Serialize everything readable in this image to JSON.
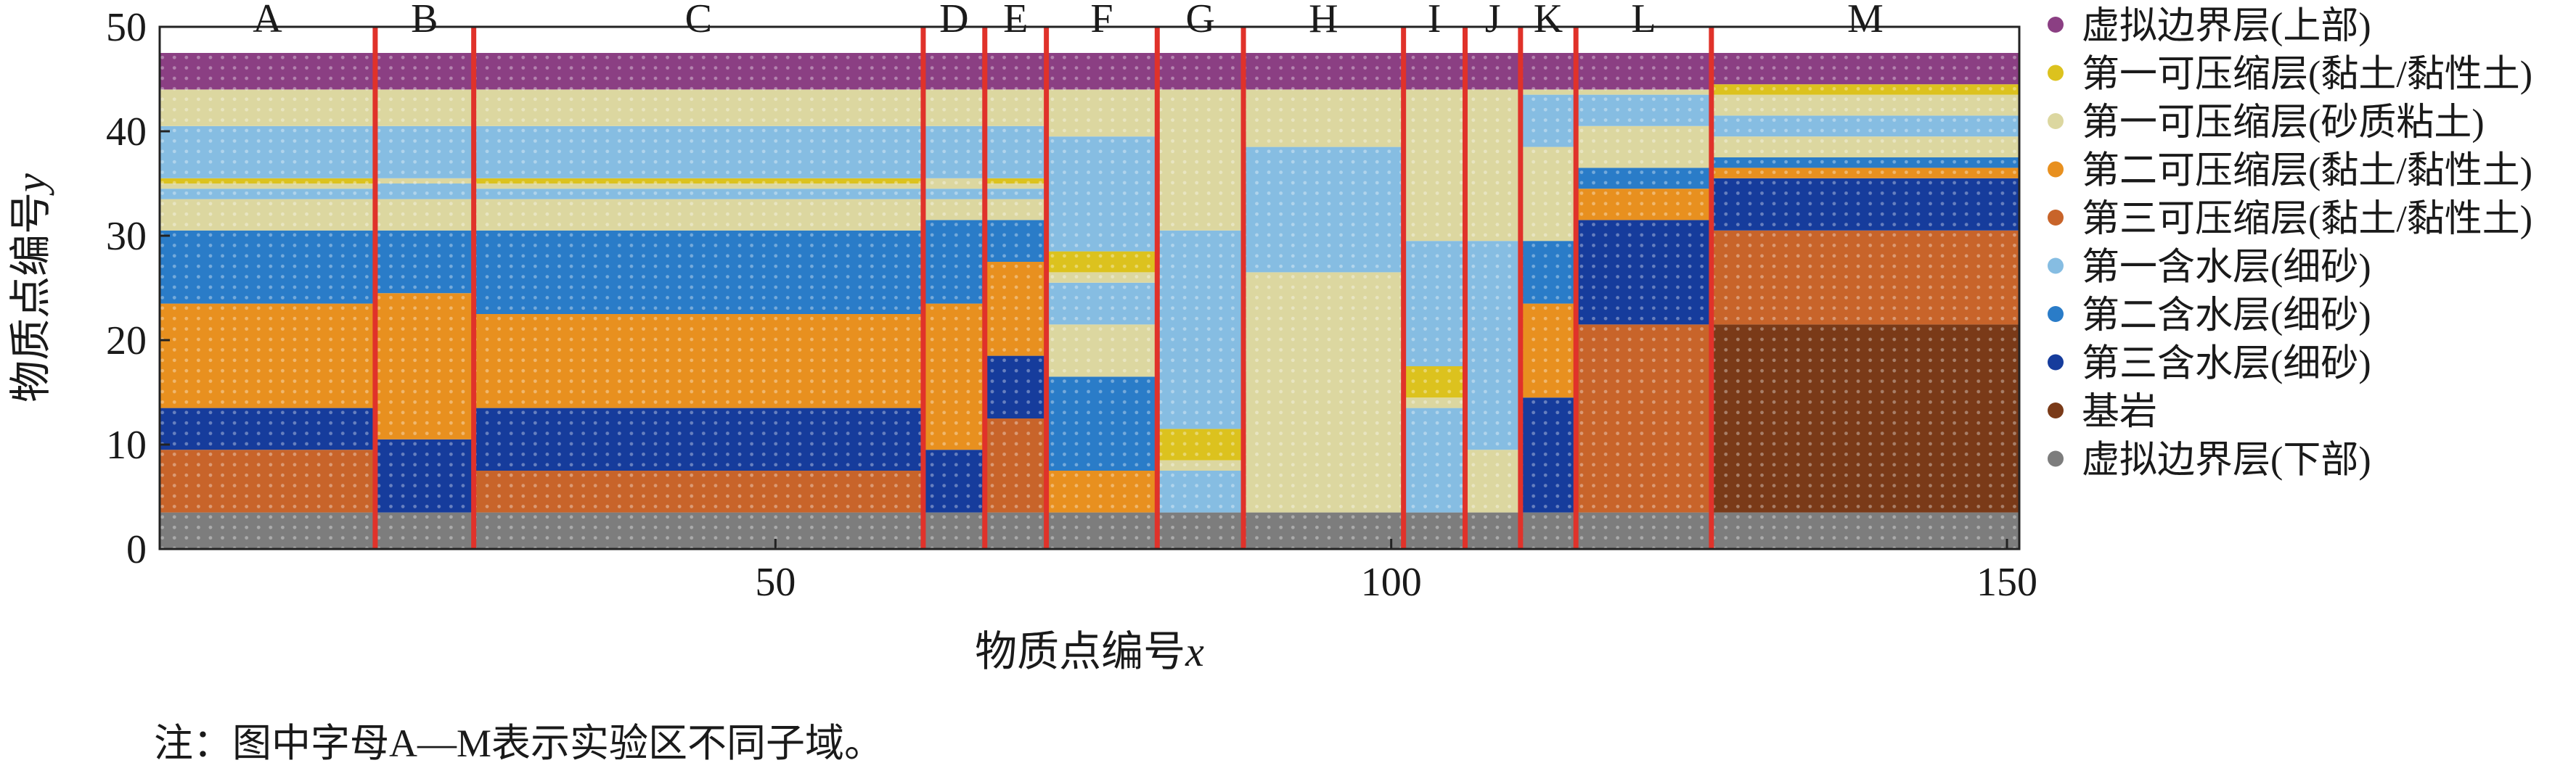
{
  "chart_data": {
    "type": "heatmap",
    "xlabel": "物质点编号",
    "xlabel_var": "x",
    "ylabel": "物质点编号",
    "ylabel_var": "y",
    "xlim": [
      0,
      151
    ],
    "ylim": [
      0,
      50
    ],
    "xticks": [
      50,
      100,
      150
    ],
    "yticks": [
      0,
      10,
      20,
      30,
      40,
      50
    ],
    "layers": [
      {
        "id": "virt_top",
        "name": "虚拟边界层(上部)",
        "color": "#8b3f83"
      },
      {
        "id": "comp1_clay",
        "name": "第一可压缩层(黏土/黏性土)",
        "color": "#dcc21e"
      },
      {
        "id": "comp1_silt",
        "name": "第一可压缩层(砂质粘土)",
        "color": "#dcd7a0"
      },
      {
        "id": "comp2_clay",
        "name": "第二可压缩层(黏土/黏性土)",
        "color": "#e8901f"
      },
      {
        "id": "comp3_clay",
        "name": "第三可压缩层(黏土/黏性土)",
        "color": "#c8642a"
      },
      {
        "id": "aq1",
        "name": "第一含水层(细砂)",
        "color": "#86bde2"
      },
      {
        "id": "aq2",
        "name": "第二含水层(细砂)",
        "color": "#2a7cc8"
      },
      {
        "id": "aq3",
        "name": "第三含水层(细砂)",
        "color": "#163c9c"
      },
      {
        "id": "bedrock",
        "name": "基岩",
        "color": "#7a3a18"
      },
      {
        "id": "virt_bottom",
        "name": "虚拟边界层(下部)",
        "color": "#7d7d7d"
      }
    ],
    "zones": [
      {
        "label": "A",
        "x_range": [
          0,
          17.5
        ],
        "strata": [
          {
            "layer": "virt_bottom",
            "y": [
              0,
              3.5
            ]
          },
          {
            "layer": "comp3_clay",
            "y": [
              3.5,
              9.5
            ]
          },
          {
            "layer": "aq3",
            "y": [
              9.5,
              13.5
            ]
          },
          {
            "layer": "comp2_clay",
            "y": [
              13.5,
              23.5
            ]
          },
          {
            "layer": "aq2",
            "y": [
              23.5,
              30.5
            ]
          },
          {
            "layer": "comp1_silt",
            "y": [
              30.5,
              33.5
            ]
          },
          {
            "layer": "aq1",
            "y": [
              33.5,
              34.5
            ]
          },
          {
            "layer": "comp1_silt",
            "y": [
              34.5,
              35
            ]
          },
          {
            "layer": "comp1_clay",
            "y": [
              35,
              35.5
            ]
          },
          {
            "layer": "aq1",
            "y": [
              35.5,
              40.5
            ]
          },
          {
            "layer": "comp1_silt",
            "y": [
              40.5,
              44
            ]
          },
          {
            "layer": "virt_top",
            "y": [
              44,
              47.5
            ]
          }
        ]
      },
      {
        "label": "B",
        "x_range": [
          17.5,
          25.5
        ],
        "strata": [
          {
            "layer": "virt_bottom",
            "y": [
              0,
              3.5
            ]
          },
          {
            "layer": "aq3",
            "y": [
              3.5,
              10.5
            ]
          },
          {
            "layer": "comp2_clay",
            "y": [
              10.5,
              24.5
            ]
          },
          {
            "layer": "aq2",
            "y": [
              24.5,
              30.5
            ]
          },
          {
            "layer": "comp1_silt",
            "y": [
              30.5,
              33.5
            ]
          },
          {
            "layer": "aq1",
            "y": [
              33.5,
              35
            ]
          },
          {
            "layer": "comp1_silt",
            "y": [
              35,
              35.5
            ]
          },
          {
            "layer": "aq1",
            "y": [
              35.5,
              40.5
            ]
          },
          {
            "layer": "comp1_silt",
            "y": [
              40.5,
              44
            ]
          },
          {
            "layer": "virt_top",
            "y": [
              44,
              47.5
            ]
          }
        ]
      },
      {
        "label": "C",
        "x_range": [
          25.5,
          62
        ],
        "strata": [
          {
            "layer": "virt_bottom",
            "y": [
              0,
              3.5
            ]
          },
          {
            "layer": "comp3_clay",
            "y": [
              3.5,
              7.5
            ]
          },
          {
            "layer": "aq3",
            "y": [
              7.5,
              13.5
            ]
          },
          {
            "layer": "comp2_clay",
            "y": [
              13.5,
              22.5
            ]
          },
          {
            "layer": "aq2",
            "y": [
              22.5,
              30.5
            ]
          },
          {
            "layer": "comp1_silt",
            "y": [
              30.5,
              33.5
            ]
          },
          {
            "layer": "aq1",
            "y": [
              33.5,
              34.5
            ]
          },
          {
            "layer": "comp1_silt",
            "y": [
              34.5,
              35
            ]
          },
          {
            "layer": "comp1_clay",
            "y": [
              35,
              35.5
            ]
          },
          {
            "layer": "aq1",
            "y": [
              35.5,
              40.5
            ]
          },
          {
            "layer": "comp1_silt",
            "y": [
              40.5,
              44
            ]
          },
          {
            "layer": "virt_top",
            "y": [
              44,
              47.5
            ]
          }
        ]
      },
      {
        "label": "D",
        "x_range": [
          62,
          67
        ],
        "strata": [
          {
            "layer": "virt_bottom",
            "y": [
              0,
              3.5
            ]
          },
          {
            "layer": "aq3",
            "y": [
              3.5,
              9.5
            ]
          },
          {
            "layer": "comp2_clay",
            "y": [
              9.5,
              23.5
            ]
          },
          {
            "layer": "aq2",
            "y": [
              23.5,
              31.5
            ]
          },
          {
            "layer": "comp1_silt",
            "y": [
              31.5,
              33.5
            ]
          },
          {
            "layer": "aq1",
            "y": [
              33.5,
              34.5
            ]
          },
          {
            "layer": "comp1_silt",
            "y": [
              34.5,
              35.5
            ]
          },
          {
            "layer": "aq1",
            "y": [
              35.5,
              40.5
            ]
          },
          {
            "layer": "comp1_silt",
            "y": [
              40.5,
              44
            ]
          },
          {
            "layer": "virt_top",
            "y": [
              44,
              47.5
            ]
          }
        ]
      },
      {
        "label": "E",
        "x_range": [
          67,
          72
        ],
        "strata": [
          {
            "layer": "virt_bottom",
            "y": [
              0,
              3.5
            ]
          },
          {
            "layer": "comp3_clay",
            "y": [
              3.5,
              12.5
            ]
          },
          {
            "layer": "aq3",
            "y": [
              12.5,
              18.5
            ]
          },
          {
            "layer": "comp2_clay",
            "y": [
              18.5,
              27.5
            ]
          },
          {
            "layer": "aq2",
            "y": [
              27.5,
              31.5
            ]
          },
          {
            "layer": "comp1_silt",
            "y": [
              31.5,
              33.5
            ]
          },
          {
            "layer": "aq1",
            "y": [
              33.5,
              34.5
            ]
          },
          {
            "layer": "comp1_silt",
            "y": [
              34.5,
              35
            ]
          },
          {
            "layer": "comp1_clay",
            "y": [
              35,
              35.5
            ]
          },
          {
            "layer": "aq1",
            "y": [
              35.5,
              40.5
            ]
          },
          {
            "layer": "comp1_silt",
            "y": [
              40.5,
              44
            ]
          },
          {
            "layer": "virt_top",
            "y": [
              44,
              47.5
            ]
          }
        ]
      },
      {
        "label": "F",
        "x_range": [
          72,
          81
        ],
        "strata": [
          {
            "layer": "virt_bottom",
            "y": [
              0,
              3.5
            ]
          },
          {
            "layer": "comp2_clay",
            "y": [
              3.5,
              7.5
            ]
          },
          {
            "layer": "aq2",
            "y": [
              7.5,
              16.5
            ]
          },
          {
            "layer": "comp1_silt",
            "y": [
              16.5,
              21.5
            ]
          },
          {
            "layer": "aq1",
            "y": [
              21.5,
              25.5
            ]
          },
          {
            "layer": "comp1_silt",
            "y": [
              25.5,
              26.5
            ]
          },
          {
            "layer": "comp1_clay",
            "y": [
              26.5,
              28.5
            ]
          },
          {
            "layer": "aq1",
            "y": [
              28.5,
              39.5
            ]
          },
          {
            "layer": "comp1_silt",
            "y": [
              39.5,
              44
            ]
          },
          {
            "layer": "virt_top",
            "y": [
              44,
              47.5
            ]
          }
        ]
      },
      {
        "label": "G",
        "x_range": [
          81,
          88
        ],
        "strata": [
          {
            "layer": "virt_bottom",
            "y": [
              0,
              3.5
            ]
          },
          {
            "layer": "aq1",
            "y": [
              3.5,
              7.5
            ]
          },
          {
            "layer": "comp1_silt",
            "y": [
              7.5,
              8.5
            ]
          },
          {
            "layer": "comp1_clay",
            "y": [
              8.5,
              11.5
            ]
          },
          {
            "layer": "aq1",
            "y": [
              11.5,
              30.5
            ]
          },
          {
            "layer": "comp1_silt",
            "y": [
              30.5,
              44
            ]
          },
          {
            "layer": "virt_top",
            "y": [
              44,
              47.5
            ]
          }
        ]
      },
      {
        "label": "H",
        "x_range": [
          88,
          101
        ],
        "strata": [
          {
            "layer": "virt_bottom",
            "y": [
              0,
              3.5
            ]
          },
          {
            "layer": "comp1_silt",
            "y": [
              3.5,
              26.5
            ]
          },
          {
            "layer": "aq1",
            "y": [
              26.5,
              38.5
            ]
          },
          {
            "layer": "comp1_silt",
            "y": [
              38.5,
              44
            ]
          },
          {
            "layer": "virt_top",
            "y": [
              44,
              47.5
            ]
          }
        ]
      },
      {
        "label": "I",
        "x_range": [
          101,
          106
        ],
        "strata": [
          {
            "layer": "virt_bottom",
            "y": [
              0,
              3.5
            ]
          },
          {
            "layer": "aq1",
            "y": [
              3.5,
              13.5
            ]
          },
          {
            "layer": "comp1_silt",
            "y": [
              13.5,
              14.5
            ]
          },
          {
            "layer": "comp1_clay",
            "y": [
              14.5,
              17.5
            ]
          },
          {
            "layer": "aq1",
            "y": [
              17.5,
              29.5
            ]
          },
          {
            "layer": "comp1_silt",
            "y": [
              29.5,
              44
            ]
          },
          {
            "layer": "virt_top",
            "y": [
              44,
              47.5
            ]
          }
        ]
      },
      {
        "label": "J",
        "x_range": [
          106,
          110.5
        ],
        "strata": [
          {
            "layer": "virt_bottom",
            "y": [
              0,
              3.5
            ]
          },
          {
            "layer": "comp1_silt",
            "y": [
              3.5,
              9.5
            ]
          },
          {
            "layer": "aq1",
            "y": [
              9.5,
              29.5
            ]
          },
          {
            "layer": "comp1_silt",
            "y": [
              29.5,
              44
            ]
          },
          {
            "layer": "virt_top",
            "y": [
              44,
              47.5
            ]
          }
        ]
      },
      {
        "label": "K",
        "x_range": [
          110.5,
          115
        ],
        "strata": [
          {
            "layer": "virt_bottom",
            "y": [
              0,
              3.5
            ]
          },
          {
            "layer": "aq3",
            "y": [
              3.5,
              14.5
            ]
          },
          {
            "layer": "comp2_clay",
            "y": [
              14.5,
              23.5
            ]
          },
          {
            "layer": "aq2",
            "y": [
              23.5,
              29.5
            ]
          },
          {
            "layer": "comp1_silt",
            "y": [
              29.5,
              38.5
            ]
          },
          {
            "layer": "aq1",
            "y": [
              38.5,
              43.5
            ]
          },
          {
            "layer": "comp1_silt",
            "y": [
              43.5,
              44
            ]
          },
          {
            "layer": "virt_top",
            "y": [
              44,
              47.5
            ]
          }
        ]
      },
      {
        "label": "L",
        "x_range": [
          115,
          126
        ],
        "strata": [
          {
            "layer": "virt_bottom",
            "y": [
              0,
              3.5
            ]
          },
          {
            "layer": "comp3_clay",
            "y": [
              3.5,
              21.5
            ]
          },
          {
            "layer": "aq3",
            "y": [
              21.5,
              31.5
            ]
          },
          {
            "layer": "comp2_clay",
            "y": [
              31.5,
              34.5
            ]
          },
          {
            "layer": "aq2",
            "y": [
              34.5,
              36.5
            ]
          },
          {
            "layer": "comp1_silt",
            "y": [
              36.5,
              40.5
            ]
          },
          {
            "layer": "aq1",
            "y": [
              40.5,
              43.5
            ]
          },
          {
            "layer": "comp1_silt",
            "y": [
              43.5,
              44
            ]
          },
          {
            "layer": "virt_top",
            "y": [
              44,
              47.5
            ]
          }
        ]
      },
      {
        "label": "M",
        "x_range": [
          126,
          151
        ],
        "strata": [
          {
            "layer": "virt_bottom",
            "y": [
              0,
              3.5
            ]
          },
          {
            "layer": "bedrock",
            "y": [
              3.5,
              21.5
            ]
          },
          {
            "layer": "comp3_clay",
            "y": [
              21.5,
              30.5
            ]
          },
          {
            "layer": "aq3",
            "y": [
              30.5,
              35.5
            ]
          },
          {
            "layer": "comp2_clay",
            "y": [
              35.5,
              36.5
            ]
          },
          {
            "layer": "aq2",
            "y": [
              36.5,
              37.5
            ]
          },
          {
            "layer": "comp1_silt",
            "y": [
              37.5,
              39.5
            ]
          },
          {
            "layer": "aq1",
            "y": [
              39.5,
              41.5
            ]
          },
          {
            "layer": "comp1_silt",
            "y": [
              41.5,
              43.5
            ]
          },
          {
            "layer": "comp1_clay",
            "y": [
              43.5,
              44.5
            ]
          },
          {
            "layer": "virt_top",
            "y": [
              44.5,
              47.5
            ]
          }
        ]
      }
    ],
    "zone_boundaries_x": [
      17.5,
      25.5,
      62,
      67,
      72,
      81,
      88,
      101,
      106,
      110.5,
      115,
      126
    ],
    "boundary_color": "#e0322a",
    "legend_position": "right"
  },
  "note": "注：图中字母A—M表示实验区不同子域。"
}
